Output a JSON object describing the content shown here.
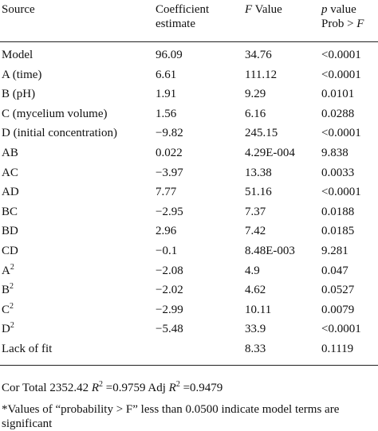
{
  "table": {
    "header": [
      [
        {
          "text": "Source"
        }
      ],
      [
        {
          "text": "Coefficient estimate"
        }
      ],
      [
        {
          "text": "F",
          "italic": true
        },
        {
          "text": " Value"
        }
      ],
      [
        {
          "text": "p",
          "italic": true
        },
        {
          "text": " value Prob > "
        },
        {
          "text": "F",
          "italic": true
        }
      ]
    ],
    "rows": [
      {
        "source": "Model",
        "values": [
          "96.09",
          "34.76",
          "<0.0001"
        ]
      },
      {
        "source": "A (time)",
        "values": [
          "6.61",
          "111.12",
          "<0.0001"
        ]
      },
      {
        "source": "B (pH)",
        "values": [
          "1.91",
          "9.29",
          "0.0101"
        ]
      },
      {
        "source": "C (mycelium volume)",
        "values": [
          "1.56",
          "6.16",
          "0.0288"
        ]
      },
      {
        "source": "D (initial concentration)",
        "values": [
          "−9.82",
          "245.15",
          "<0.0001"
        ]
      },
      {
        "source": "AB",
        "values": [
          "0.022",
          "4.29E-004",
          "9.838"
        ]
      },
      {
        "source": "AC",
        "values": [
          "−3.97",
          "13.38",
          "0.0033"
        ]
      },
      {
        "source": "AD",
        "values": [
          "7.77",
          "51.16",
          "<0.0001"
        ]
      },
      {
        "source": "BC",
        "values": [
          "−2.95",
          "7.37",
          "0.0188"
        ]
      },
      {
        "source": "BD",
        "values": [
          "2.96",
          "7.42",
          "0.0185"
        ]
      },
      {
        "source": "CD",
        "values": [
          "−0.1",
          "8.48E-003",
          "9.281"
        ]
      },
      {
        "source": "A",
        "sup": "2",
        "values": [
          "−2.08",
          "4.9",
          "0.047"
        ]
      },
      {
        "source": "B",
        "sup": "2",
        "values": [
          "−2.02",
          "4.62",
          "0.0527"
        ]
      },
      {
        "source": "C",
        "sup": "2",
        "values": [
          "−2.99",
          "10.11",
          "0.0079"
        ]
      },
      {
        "source": "D",
        "sup": "2",
        "values": [
          "−5.48",
          "33.9",
          "<0.0001"
        ]
      },
      {
        "source": "Lack of fit",
        "values": [
          "",
          "8.33",
          "0.1119"
        ]
      }
    ]
  },
  "footer": [
    {
      "text": "Cor Total 2352.42 "
    },
    {
      "text": "R",
      "italic": true
    },
    {
      "text": "2",
      "sup": true
    },
    {
      "text": " =0.9759 Adj "
    },
    {
      "text": "R",
      "italic": true
    },
    {
      "text": "2",
      "sup": true
    },
    {
      "text": " =0.9479"
    }
  ],
  "footnote": "*Values of “probability > F” less than 0.0500 indicate model terms are significant"
}
